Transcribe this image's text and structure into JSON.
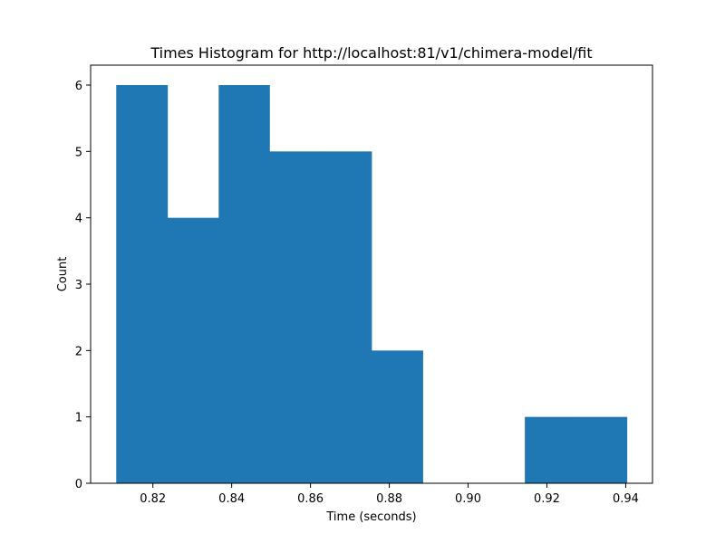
{
  "chart_data": {
    "type": "bar",
    "title": "Times Histogram for http://localhost:81/v1/chimera-model/fit",
    "xlabel": "Time (seconds)",
    "ylabel": "Count",
    "xlim": [
      0.8042,
      0.9468
    ],
    "ylim": [
      0,
      6.3
    ],
    "bins": [
      {
        "x0": 0.8107,
        "x1": 0.8237,
        "count": 6
      },
      {
        "x0": 0.8237,
        "x1": 0.8367,
        "count": 4
      },
      {
        "x0": 0.8367,
        "x1": 0.8496,
        "count": 6
      },
      {
        "x0": 0.8496,
        "x1": 0.8626,
        "count": 5
      },
      {
        "x0": 0.8626,
        "x1": 0.8755,
        "count": 5
      },
      {
        "x0": 0.8755,
        "x1": 0.8885,
        "count": 2
      },
      {
        "x0": 0.8885,
        "x1": 0.9014,
        "count": 0
      },
      {
        "x0": 0.9014,
        "x1": 0.9144,
        "count": 0
      },
      {
        "x0": 0.9144,
        "x1": 0.9273,
        "count": 1
      },
      {
        "x0": 0.9273,
        "x1": 0.9403,
        "count": 1
      }
    ],
    "x_ticks": [
      {
        "value": 0.82,
        "label": "0.82"
      },
      {
        "value": 0.84,
        "label": "0.84"
      },
      {
        "value": 0.86,
        "label": "0.86"
      },
      {
        "value": 0.88,
        "label": "0.88"
      },
      {
        "value": 0.9,
        "label": "0.90"
      },
      {
        "value": 0.92,
        "label": "0.92"
      },
      {
        "value": 0.94,
        "label": "0.94"
      }
    ],
    "y_ticks": [
      {
        "value": 0,
        "label": "0"
      },
      {
        "value": 1,
        "label": "1"
      },
      {
        "value": 2,
        "label": "2"
      },
      {
        "value": 3,
        "label": "3"
      },
      {
        "value": 4,
        "label": "4"
      },
      {
        "value": 5,
        "label": "5"
      },
      {
        "value": 6,
        "label": "6"
      }
    ],
    "bar_color": "#1f77b4",
    "grid": false,
    "legend": "none"
  }
}
